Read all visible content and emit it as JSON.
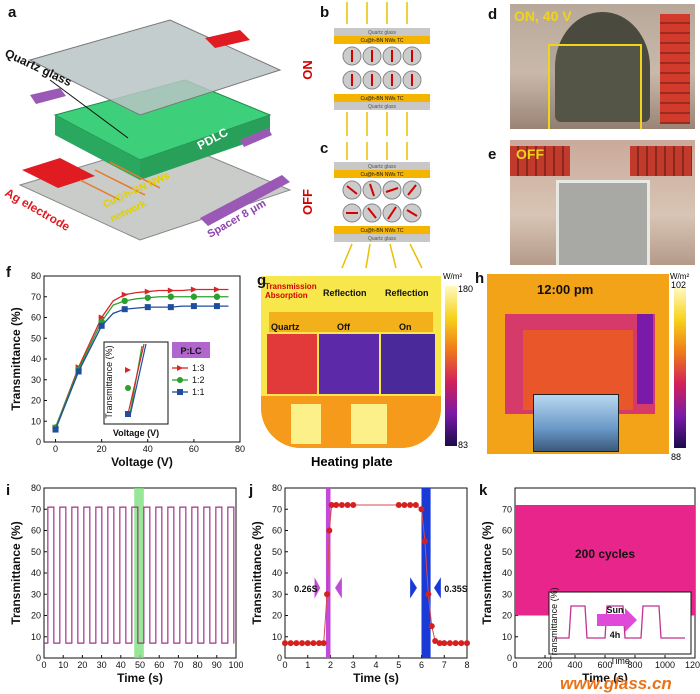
{
  "panels": {
    "a": {
      "label": "a",
      "quartz": "Quartz glass",
      "pdlc": "PDLC",
      "agElectrode": "Ag electrode",
      "network1": "Cu@h-BN NWs",
      "network2": "network",
      "spacer": "Spacer 8 μm"
    },
    "b": {
      "label": "b",
      "state": "ON",
      "topGlass": "Quartz glass",
      "topTC": "Cu@h-BN NWs TC",
      "botTC": "Cu@h-BN NWs TC",
      "botGlass": "Quartz glass"
    },
    "c": {
      "label": "c",
      "state": "OFF",
      "topGlass": "Quartz glass",
      "topTC": "Cu@h-BN NWs TC",
      "botTC": "Cu@h-BN NWs TC",
      "botGlass": "Quartz glass"
    },
    "d": {
      "label": "d",
      "caption": "ON, 40 V"
    },
    "e": {
      "label": "e",
      "caption": "OFF"
    },
    "f": {
      "label": "f",
      "legendTitle": "P:LC",
      "insetX": "Voltage (V)",
      "insetY": "Transmittance (%)"
    },
    "g": {
      "label": "g",
      "t1": "Transmission",
      "t2": "Absorption",
      "r1": "Reflection",
      "r2": "Reflection",
      "b1": "Quartz",
      "b2": "Off",
      "b3": "On",
      "unit": "W/m²",
      "max": "180",
      "min": "83",
      "caption": "Heating plate"
    },
    "h": {
      "label": "h",
      "time": "12:00 pm",
      "unit": "W/m²",
      "max": "102",
      "min": "88"
    },
    "i": {
      "label": "i"
    },
    "j": {
      "label": "j",
      "rise": "0.26S",
      "fall": "0.35S"
    },
    "k": {
      "label": "k",
      "cycles": "200 cycles",
      "sun": "Sun",
      "hours": "4h",
      "insetX": "Time",
      "insetY": "Transmittance (%)"
    }
  },
  "watermark": "www.glass.cn",
  "chart_data": [
    {
      "id": "f",
      "type": "line",
      "xlabel": "Voltage (V)",
      "ylabel": "Transmittance (%)",
      "xlim": [
        -5,
        80
      ],
      "ylim": [
        0,
        80
      ],
      "xticks": [
        "0",
        "20",
        "40",
        "60",
        "80"
      ],
      "yticks": [
        "0",
        "10",
        "20",
        "30",
        "40",
        "50",
        "60",
        "70",
        "80"
      ],
      "series": [
        {
          "name": "1:3",
          "color": "#d62728",
          "marker": "triangle",
          "x": [
            0,
            10,
            20,
            25,
            30,
            35,
            40,
            45,
            50,
            55,
            60,
            65,
            70,
            75
          ],
          "y": [
            7,
            36,
            60,
            68,
            71,
            72,
            72.5,
            73,
            73,
            73,
            73.5,
            73.5,
            73.5,
            73.5
          ]
        },
        {
          "name": "1:2",
          "color": "#2ca02c",
          "marker": "circle",
          "x": [
            0,
            10,
            20,
            25,
            30,
            35,
            40,
            45,
            50,
            55,
            60,
            65,
            70,
            75
          ],
          "y": [
            7,
            35,
            58,
            66,
            68,
            69,
            69.5,
            70,
            70,
            70,
            70,
            70,
            70,
            70
          ]
        },
        {
          "name": "1:1",
          "color": "#1f4e9e",
          "marker": "square",
          "x": [
            0,
            10,
            20,
            25,
            30,
            35,
            40,
            45,
            50,
            55,
            60,
            65,
            70,
            75
          ],
          "y": [
            6,
            34,
            56,
            62,
            64,
            64.5,
            65,
            65,
            65,
            65.5,
            65.5,
            65.5,
            65.5,
            65.5
          ]
        }
      ]
    },
    {
      "id": "i",
      "type": "line",
      "xlabel": "Time (s)",
      "ylabel": "Transmittance (%)",
      "xlim": [
        0,
        100
      ],
      "ylim": [
        0,
        80
      ],
      "xticks": [
        "0",
        "10",
        "20",
        "30",
        "40",
        "50",
        "60",
        "70",
        "80",
        "90",
        "100"
      ],
      "yticks": [
        "0",
        "10",
        "20",
        "30",
        "40",
        "50",
        "60",
        "70",
        "80"
      ],
      "high": 71,
      "low": 7,
      "period": 6.25,
      "start": 2,
      "highlight": [
        47,
        52
      ]
    },
    {
      "id": "j",
      "type": "scatter",
      "xlabel": "Time (s)",
      "ylabel": "Transmittance (%)",
      "xlim": [
        0,
        8
      ],
      "ylim": [
        0,
        80
      ],
      "xticks": [
        "0",
        "1",
        "2",
        "3",
        "4",
        "5",
        "6",
        "7",
        "8"
      ],
      "yticks": [
        "0",
        "10",
        "20",
        "30",
        "40",
        "50",
        "60",
        "70",
        "80"
      ],
      "x": [
        0,
        0.25,
        0.5,
        0.75,
        1,
        1.25,
        1.5,
        1.7,
        1.85,
        1.95,
        2.05,
        2.25,
        2.5,
        2.75,
        3,
        5,
        5.25,
        5.5,
        5.75,
        6.0,
        6.15,
        6.3,
        6.45,
        6.6,
        6.8,
        7,
        7.25,
        7.5,
        7.75,
        8
      ],
      "y": [
        7,
        7,
        7,
        7,
        7,
        7,
        7,
        7,
        30,
        60,
        72,
        72,
        72,
        72,
        72,
        72,
        72,
        72,
        72,
        70,
        55,
        30,
        15,
        8,
        7,
        7,
        7,
        7,
        7,
        7
      ],
      "riseBand": [
        1.8,
        2.0
      ],
      "fallBand": [
        6.0,
        6.4
      ]
    },
    {
      "id": "k",
      "type": "area",
      "xlabel": "Time (s)",
      "ylabel": "Transmittance (%)",
      "xlim": [
        0,
        1200
      ],
      "ylim": [
        0,
        80
      ],
      "xticks": [
        "0",
        "200",
        "400",
        "600",
        "800",
        "1000",
        "1200"
      ],
      "yticks": [
        "0",
        "10",
        "20",
        "30",
        "40",
        "50",
        "60",
        "70"
      ],
      "band": [
        20,
        72
      ]
    }
  ]
}
